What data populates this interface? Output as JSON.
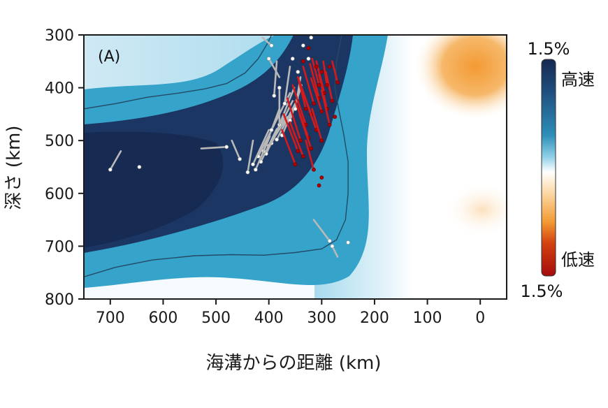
{
  "chart_data": {
    "type": "heatmap",
    "panel_label": "(A)",
    "xlabel": "海溝からの距離 (km)",
    "ylabel": "深さ (km)",
    "xlim": [
      750,
      -50
    ],
    "ylim": [
      300,
      800
    ],
    "x_ticks": [
      700,
      600,
      500,
      400,
      300,
      200,
      100,
      0
    ],
    "y_ticks": [
      300,
      400,
      500,
      600,
      700,
      800
    ],
    "colorbar": {
      "top_label": "1.5%",
      "bottom_label": "1.5%",
      "high_label": "高速",
      "low_label": "低速",
      "colors": [
        "#15284f",
        "#1f4f7f",
        "#2e8fb8",
        "#8fd0e6",
        "#ffffff",
        "#fbd7a2",
        "#f39a33",
        "#d2410f",
        "#a50b0b"
      ]
    },
    "slab_contour_top": [
      [
        750,
        440
      ],
      [
        690,
        430
      ],
      [
        630,
        418
      ],
      [
        570,
        410
      ],
      [
        520,
        402
      ],
      [
        480,
        392
      ],
      [
        445,
        372
      ],
      [
        420,
        345
      ],
      [
        402,
        315
      ],
      [
        395,
        300
      ]
    ],
    "slab_contour_bottom": [
      [
        750,
        758
      ],
      [
        690,
        740
      ],
      [
        620,
        726
      ],
      [
        540,
        718
      ],
      [
        470,
        716
      ],
      [
        410,
        717
      ],
      [
        350,
        712
      ],
      [
        300,
        705
      ],
      [
        272,
        688
      ],
      [
        255,
        650
      ],
      [
        250,
        600
      ],
      [
        250,
        540
      ],
      [
        258,
        490
      ],
      [
        268,
        440
      ],
      [
        275,
        400
      ],
      [
        272,
        350
      ],
      [
        262,
        300
      ]
    ],
    "events_white": [
      {
        "x": 395,
        "y": 505,
        "sx": 355,
        "sy": 425
      },
      {
        "x": 410,
        "y": 520,
        "sx": 380,
        "sy": 440
      },
      {
        "x": 400,
        "y": 510,
        "sx": 365,
        "sy": 455
      },
      {
        "x": 420,
        "y": 530,
        "sx": 390,
        "sy": 470
      },
      {
        "x": 385,
        "y": 498,
        "sx": 350,
        "sy": 430
      },
      {
        "x": 430,
        "y": 545,
        "sx": 400,
        "sy": 480
      },
      {
        "x": 440,
        "y": 560,
        "sx": 430,
        "sy": 500
      },
      {
        "x": 375,
        "y": 490,
        "sx": 345,
        "sy": 420
      },
      {
        "x": 405,
        "y": 525,
        "sx": 375,
        "sy": 460
      },
      {
        "x": 395,
        "y": 480,
        "sx": 360,
        "sy": 410
      },
      {
        "x": 415,
        "y": 540,
        "sx": 385,
        "sy": 478
      },
      {
        "x": 380,
        "y": 470,
        "sx": 352,
        "sy": 400
      },
      {
        "x": 425,
        "y": 555,
        "sx": 398,
        "sy": 492
      },
      {
        "x": 360,
        "y": 462,
        "sx": 338,
        "sy": 395
      },
      {
        "x": 370,
        "y": 430,
        "sx": 360,
        "sy": 360
      },
      {
        "x": 390,
        "y": 415,
        "sx": 385,
        "sy": 350
      },
      {
        "x": 350,
        "y": 440,
        "sx": 340,
        "sy": 380
      },
      {
        "x": 480,
        "y": 512,
        "sx": 528,
        "sy": 515
      },
      {
        "x": 455,
        "y": 535,
        "sx": 470,
        "sy": 500
      },
      {
        "x": 700,
        "y": 555,
        "sx": 680,
        "sy": 520
      },
      {
        "x": 645,
        "y": 550,
        "sx": 645,
        "sy": 550
      },
      {
        "x": 380,
        "y": 400,
        "sx": 380,
        "sy": 470
      },
      {
        "x": 400,
        "y": 345,
        "sx": 380,
        "sy": 380
      },
      {
        "x": 395,
        "y": 320,
        "sx": 412,
        "sy": 305
      },
      {
        "x": 345,
        "y": 370,
        "sx": 345,
        "sy": 370
      },
      {
        "x": 335,
        "y": 320,
        "sx": 335,
        "sy": 320
      },
      {
        "x": 355,
        "y": 345,
        "sx": 355,
        "sy": 345
      },
      {
        "x": 320,
        "y": 305,
        "sx": 320,
        "sy": 305
      },
      {
        "x": 325,
        "y": 345,
        "sx": 325,
        "sy": 345
      },
      {
        "x": 285,
        "y": 690,
        "sx": 315,
        "sy": 650
      },
      {
        "x": 280,
        "y": 700,
        "sx": 270,
        "sy": 720
      },
      {
        "x": 250,
        "y": 693,
        "sx": 250,
        "sy": 693
      }
    ],
    "events_red": [
      {
        "x": 330,
        "y": 470,
        "sx": 355,
        "sy": 395
      },
      {
        "x": 340,
        "y": 500,
        "sx": 365,
        "sy": 420
      },
      {
        "x": 320,
        "y": 450,
        "sx": 345,
        "sy": 380
      },
      {
        "x": 315,
        "y": 430,
        "sx": 335,
        "sy": 360
      },
      {
        "x": 345,
        "y": 520,
        "sx": 372,
        "sy": 450
      },
      {
        "x": 305,
        "y": 420,
        "sx": 322,
        "sy": 355
      },
      {
        "x": 300,
        "y": 445,
        "sx": 320,
        "sy": 382
      },
      {
        "x": 325,
        "y": 495,
        "sx": 350,
        "sy": 425
      },
      {
        "x": 290,
        "y": 440,
        "sx": 305,
        "sy": 375
      },
      {
        "x": 310,
        "y": 480,
        "sx": 335,
        "sy": 410
      },
      {
        "x": 335,
        "y": 530,
        "sx": 360,
        "sy": 465
      },
      {
        "x": 295,
        "y": 410,
        "sx": 310,
        "sy": 350
      },
      {
        "x": 350,
        "y": 545,
        "sx": 375,
        "sy": 480
      },
      {
        "x": 285,
        "y": 470,
        "sx": 300,
        "sy": 405
      },
      {
        "x": 320,
        "y": 515,
        "sx": 342,
        "sy": 450
      },
      {
        "x": 300,
        "y": 500,
        "sx": 318,
        "sy": 440
      },
      {
        "x": 280,
        "y": 425,
        "sx": 292,
        "sy": 370
      },
      {
        "x": 305,
        "y": 395,
        "sx": 318,
        "sy": 345
      },
      {
        "x": 290,
        "y": 395,
        "sx": 297,
        "sy": 350
      },
      {
        "x": 330,
        "y": 440,
        "sx": 345,
        "sy": 380
      },
      {
        "x": 315,
        "y": 555,
        "sx": 330,
        "sy": 500
      },
      {
        "x": 270,
        "y": 390,
        "sx": 280,
        "sy": 350
      },
      {
        "x": 310,
        "y": 360,
        "sx": 310,
        "sy": 360
      },
      {
        "x": 300,
        "y": 370,
        "sx": 300,
        "sy": 370
      },
      {
        "x": 285,
        "y": 360,
        "sx": 285,
        "sy": 360
      },
      {
        "x": 275,
        "y": 455,
        "sx": 275,
        "sy": 455
      },
      {
        "x": 305,
        "y": 585,
        "sx": 305,
        "sy": 585
      },
      {
        "x": 300,
        "y": 570,
        "sx": 300,
        "sy": 570
      },
      {
        "x": 325,
        "y": 325,
        "sx": 325,
        "sy": 325
      },
      {
        "x": 335,
        "y": 350,
        "sx": 335,
        "sy": 350
      }
    ]
  }
}
